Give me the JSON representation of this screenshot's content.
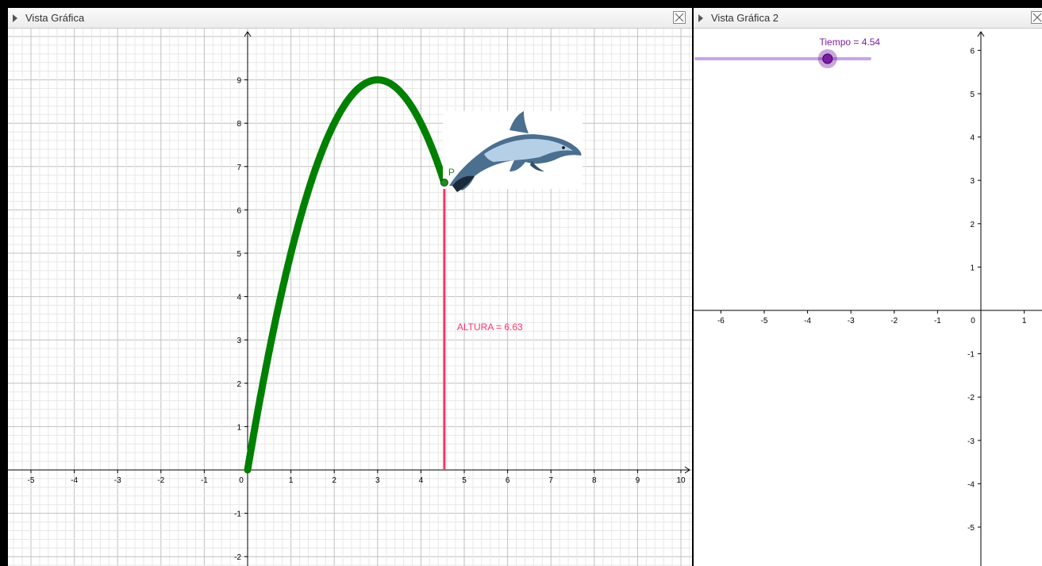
{
  "view1": {
    "title": "Vista Gráfica",
    "x_ticks": [
      "-5",
      "-4",
      "-3",
      "-2",
      "-1",
      "0",
      "1",
      "2",
      "3",
      "4",
      "5",
      "6",
      "7",
      "8",
      "9",
      "10"
    ],
    "y_ticks": [
      "9",
      "8",
      "7",
      "6",
      "5",
      "4",
      "3",
      "2",
      "1",
      "-1",
      "-2"
    ],
    "point_label": "P",
    "altura_label": "ALTURA = 6.63",
    "colors": {
      "curve": "#008000",
      "altura": "#ff3366",
      "axis": "#000000",
      "grid_major": "#c0c0c0",
      "grid_minor": "#e8e8e8"
    }
  },
  "view2": {
    "title": "Vista Gráfica 2",
    "slider_label": "Tiempo = 4.54",
    "slider": {
      "name": "Tiempo",
      "value": 4.54,
      "fraction": 0.757
    },
    "x_ticks": [
      "-6",
      "-5",
      "-4",
      "-3",
      "-2",
      "-1",
      "0",
      "1"
    ],
    "y_ticks": [
      "6",
      "5",
      "4",
      "3",
      "2",
      "1",
      "-1",
      "-2",
      "-3",
      "-4",
      "-5"
    ],
    "colors": {
      "slider": "#7b1fa2",
      "slider_track": "#c9a4e6"
    }
  },
  "chart_data": {
    "type": "line",
    "title": "",
    "xlabel": "",
    "ylabel": "",
    "xlim": [
      -5.5,
      10.2
    ],
    "ylim": [
      -2.2,
      10
    ],
    "grid": true,
    "series": [
      {
        "name": "",
        "x": [
          0,
          0.5,
          1,
          1.5,
          2,
          2.5,
          3,
          3.5,
          4,
          4.54
        ],
        "y": [
          0,
          2.75,
          5.0,
          6.75,
          8.0,
          8.75,
          9.0,
          8.75,
          8.0,
          6.63
        ]
      }
    ],
    "annotations": [
      {
        "text": "P",
        "x": 4.54,
        "y": 6.63
      },
      {
        "text": "ALTURA = 6.63",
        "x": 4.54,
        "y": 6.63
      }
    ]
  }
}
